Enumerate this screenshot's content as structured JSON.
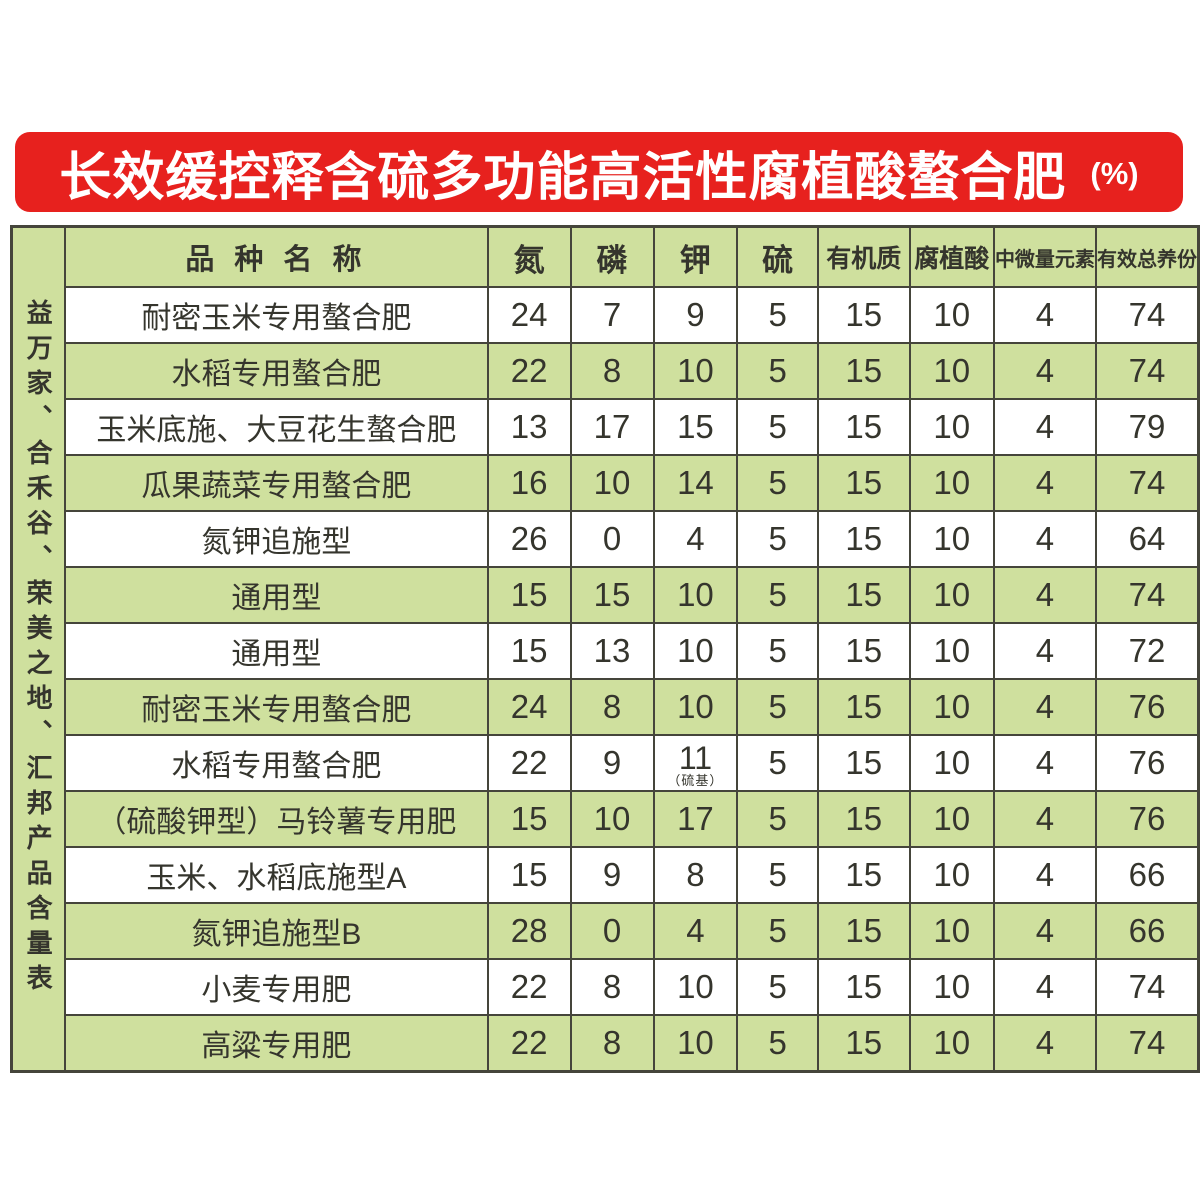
{
  "banner": {
    "title": "长效缓控释含硫多功能高活性腐植酸螯合肥",
    "unit_label": "(%)"
  },
  "sidebar": {
    "label": "益万家、合禾谷、荣美之地、汇邦产品含量表"
  },
  "colors": {
    "banner_red": "#e7211e",
    "cell_green": "#cfe09e",
    "border": "#45453b",
    "text": "#35352d"
  },
  "table": {
    "headers": [
      "品 种 名 称",
      "氮",
      "磷",
      "钾",
      "硫",
      "有机质",
      "腐植酸",
      "中微量元素",
      "有效总养份"
    ],
    "rows": [
      {
        "name": "耐密玉米专用螯合肥",
        "values": [
          "24",
          "7",
          "9",
          "5",
          "15",
          "10",
          "4",
          "74"
        ]
      },
      {
        "name": "水稻专用螯合肥",
        "values": [
          "22",
          "8",
          "10",
          "5",
          "15",
          "10",
          "4",
          "74"
        ]
      },
      {
        "name": "玉米底施、大豆花生螯合肥",
        "values": [
          "13",
          "17",
          "15",
          "5",
          "15",
          "10",
          "4",
          "79"
        ]
      },
      {
        "name": "瓜果蔬菜专用螯合肥",
        "values": [
          "16",
          "10",
          "14",
          "5",
          "15",
          "10",
          "4",
          "74"
        ]
      },
      {
        "name": "氮钾追施型",
        "values": [
          "26",
          "0",
          "4",
          "5",
          "15",
          "10",
          "4",
          "64"
        ]
      },
      {
        "name": "通用型",
        "values": [
          "15",
          "15",
          "10",
          "5",
          "15",
          "10",
          "4",
          "74"
        ]
      },
      {
        "name": "通用型",
        "values": [
          "15",
          "13",
          "10",
          "5",
          "15",
          "10",
          "4",
          "72"
        ]
      },
      {
        "name": "耐密玉米专用螯合肥",
        "values": [
          "24",
          "8",
          "10",
          "5",
          "15",
          "10",
          "4",
          "76"
        ]
      },
      {
        "name": "水稻专用螯合肥",
        "values": [
          "22",
          "9",
          "11",
          "5",
          "15",
          "10",
          "4",
          "76"
        ],
        "k_note": "（硫基）"
      },
      {
        "name": "（硫酸钾型）马铃薯专用肥",
        "values": [
          "15",
          "10",
          "17",
          "5",
          "15",
          "10",
          "4",
          "76"
        ]
      },
      {
        "name": "玉米、水稻底施型A",
        "values": [
          "15",
          "9",
          "8",
          "5",
          "15",
          "10",
          "4",
          "66"
        ]
      },
      {
        "name": "氮钾追施型B",
        "values": [
          "28",
          "0",
          "4",
          "5",
          "15",
          "10",
          "4",
          "66"
        ]
      },
      {
        "name": "小麦专用肥",
        "values": [
          "22",
          "8",
          "10",
          "5",
          "15",
          "10",
          "4",
          "74"
        ]
      },
      {
        "name": "高粱专用肥",
        "values": [
          "22",
          "8",
          "10",
          "5",
          "15",
          "10",
          "4",
          "74"
        ]
      }
    ]
  }
}
